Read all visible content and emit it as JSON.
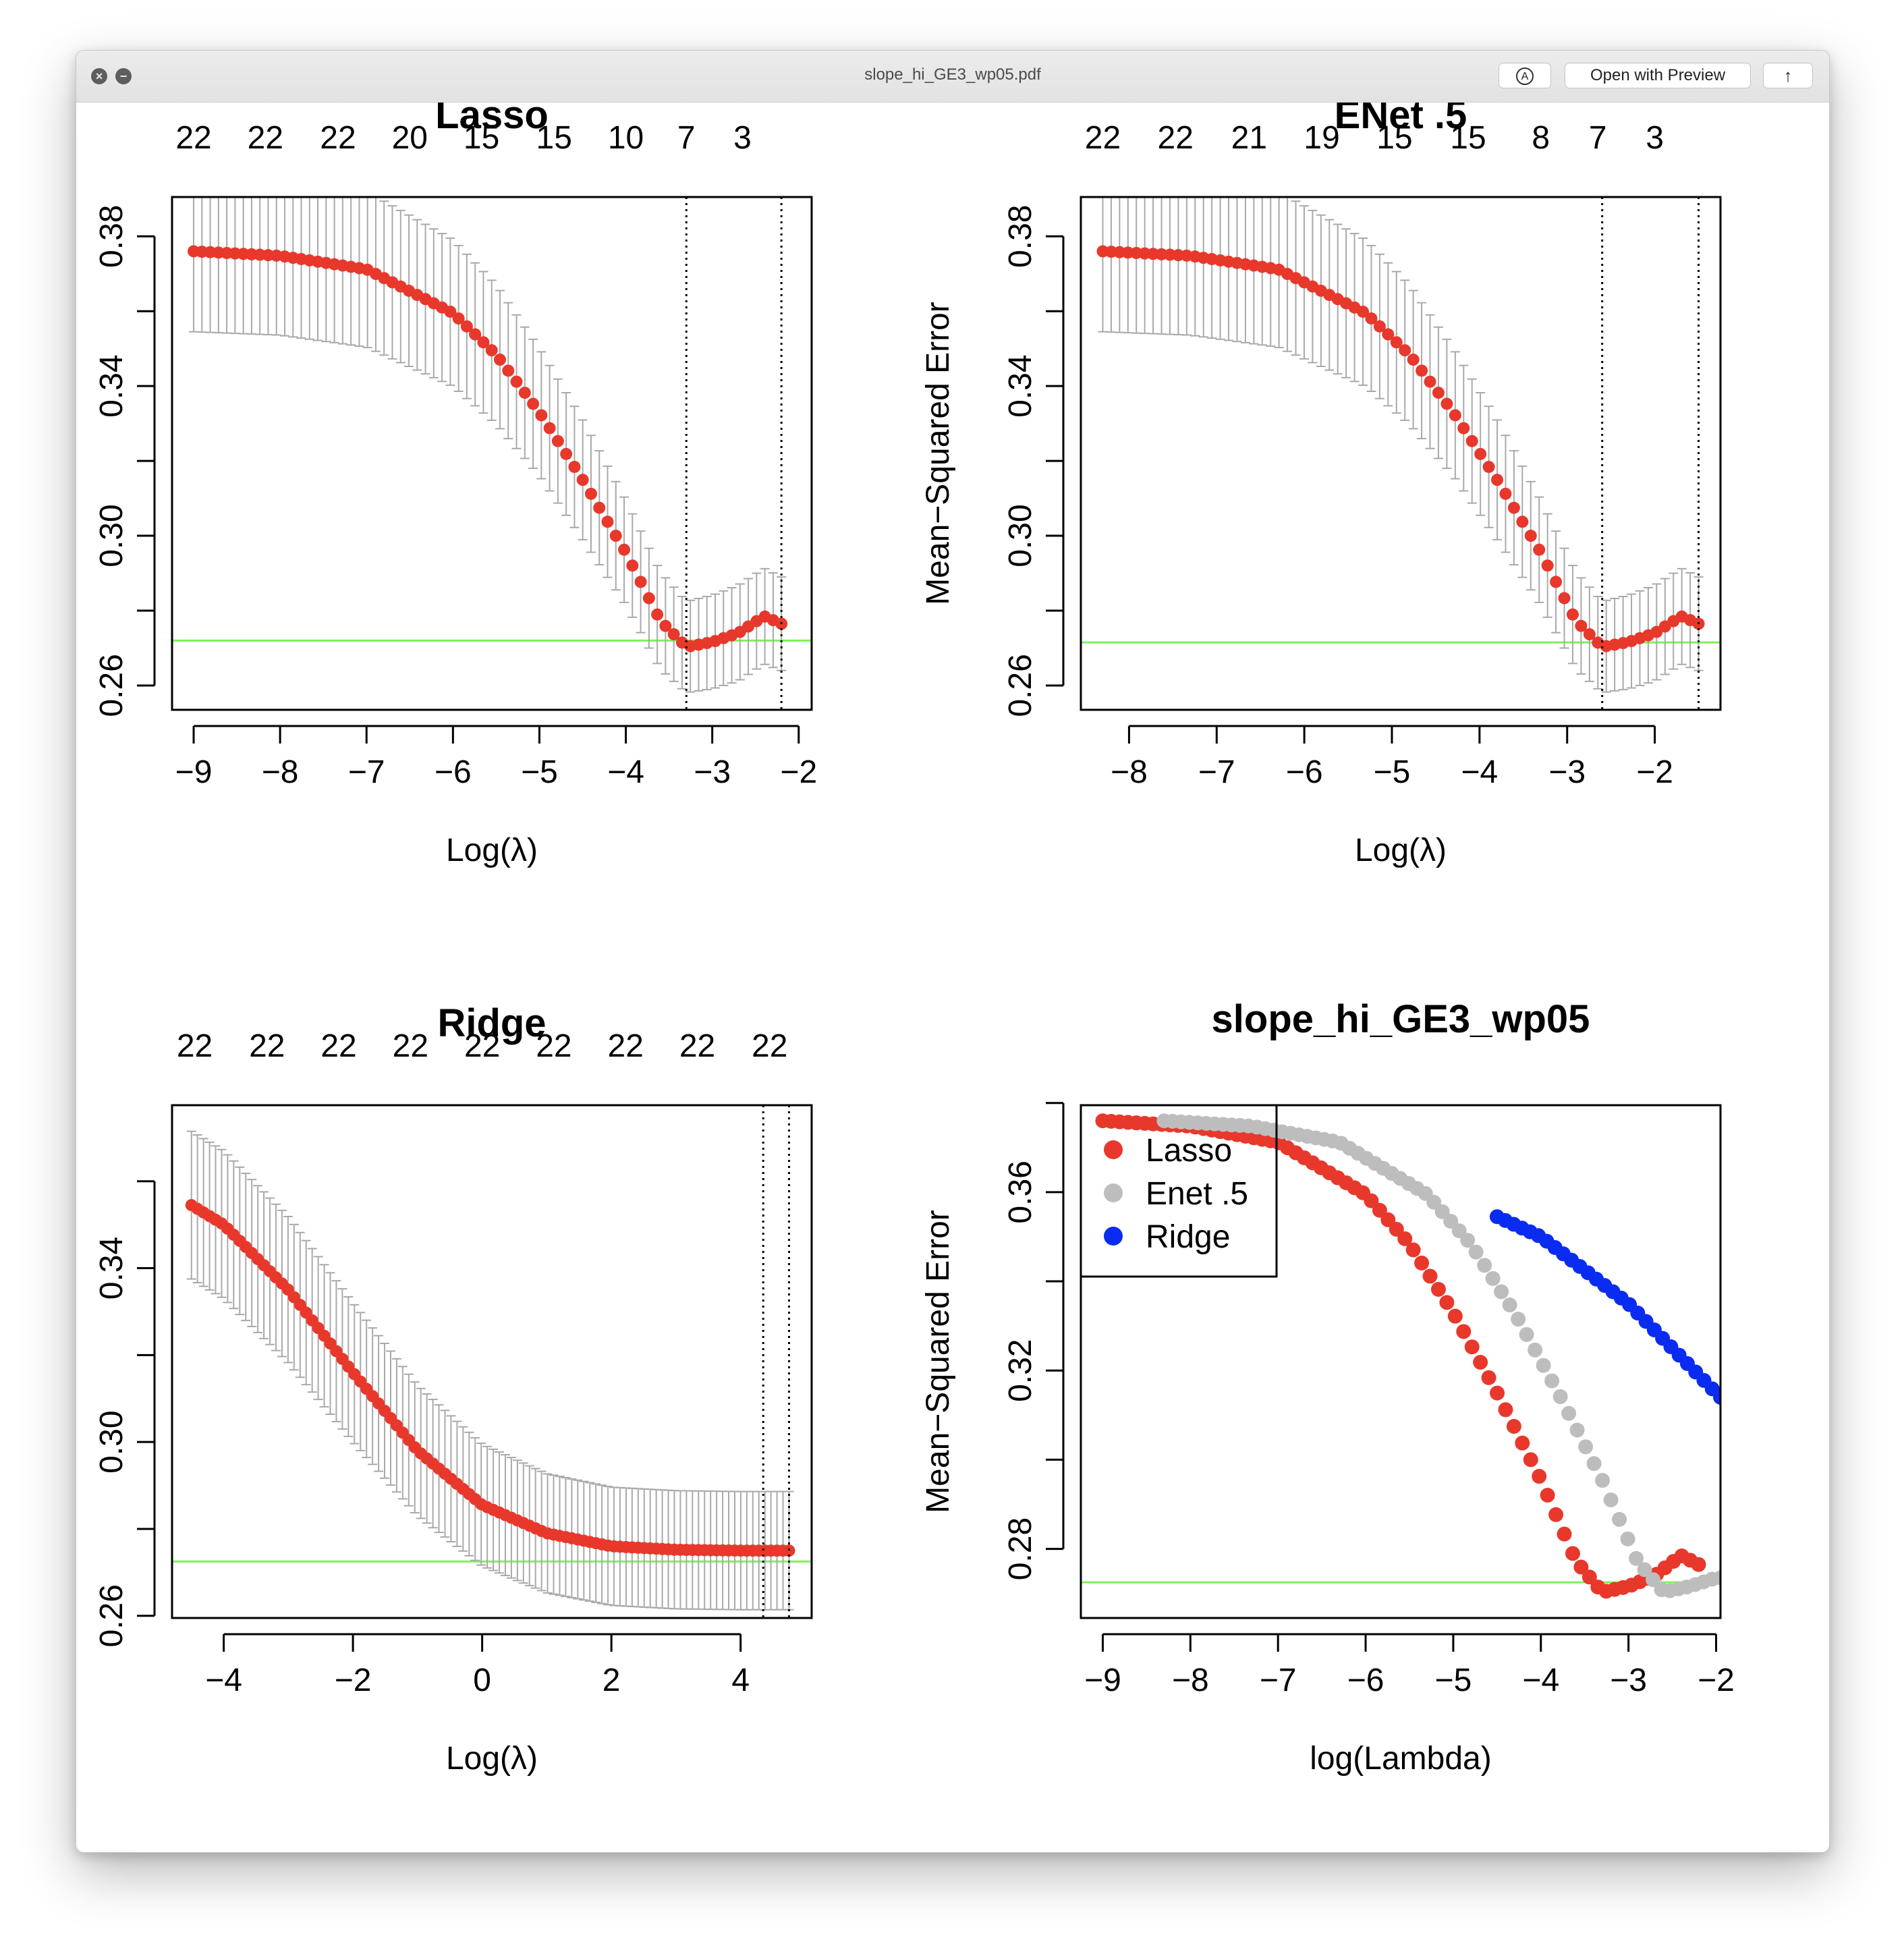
{
  "window": {
    "title": "slope_hi_GE3_wp05.pdf",
    "open_with_label": "Open with Preview",
    "close_glyph": "×",
    "minimize_glyph": "−",
    "markup_icon_glyph": "A",
    "share_icon_glyph": "↑",
    "icons": [
      "close-icon",
      "minimize-icon",
      "markup-icon",
      "share-icon"
    ]
  },
  "colors": {
    "series_red": "#e8382b",
    "enet_gray": "#bdbdbd",
    "ridge_blue": "#0a2cf0",
    "errorbar": "#a9a9a9",
    "hline": "#7cf25a"
  },
  "chart_data": [
    {
      "id": "lasso",
      "type": "scatter",
      "title": "Lasso",
      "xlabel": "Log(λ)",
      "ylabel": "Mean−Squared Error",
      "xlim": [
        -9.25,
        -1.85
      ],
      "ylim": [
        0.2535,
        0.3905
      ],
      "xticks": [
        -9,
        -8,
        -7,
        -6,
        -5,
        -4,
        -3,
        -2
      ],
      "yticks": [
        0.26,
        0.28,
        0.3,
        0.32,
        0.34,
        0.36,
        0.38
      ],
      "ytick_labels": [
        "0.26",
        "",
        "0.30",
        "",
        "0.34",
        "",
        "0.38"
      ],
      "top_axis": {
        "x": [
          -9.0,
          -8.17,
          -7.33,
          -6.5,
          -5.67,
          -4.83,
          -4.0,
          -3.3,
          -2.65
        ],
        "labels": [
          "22",
          "22",
          "22",
          "20",
          "15",
          "15",
          "10",
          "7",
          "3"
        ]
      },
      "vlines": [
        -3.3,
        -2.2
      ],
      "hline": 0.272,
      "series": [
        {
          "x_start": -9.0,
          "x_end": -2.2,
          "n": 72,
          "knots_x": [
            -9.0,
            -8.0,
            -7.0,
            -6.0,
            -5.5,
            -5.0,
            -4.5,
            -4.0,
            -3.6,
            -3.3,
            -3.0,
            -2.7,
            -2.4,
            -2.2
          ],
          "knots_y": [
            0.376,
            0.3748,
            0.3712,
            0.3595,
            0.3484,
            0.333,
            0.315,
            0.2955,
            0.2773,
            0.2703,
            0.2716,
            0.274,
            0.2785,
            0.2765
          ],
          "se": [
            0.0215,
            0.0212,
            0.0208,
            0.0196,
            0.0186,
            0.017,
            0.016,
            0.014,
            0.013,
            0.0122,
            0.0125,
            0.0128,
            0.0128,
            0.0125
          ]
        }
      ]
    },
    {
      "id": "enet",
      "type": "scatter",
      "title": "ENet .5",
      "xlabel": "Log(λ)",
      "ylabel": "Mean−Squared Error",
      "xlim": [
        -8.55,
        -1.25
      ],
      "ylim": [
        0.2535,
        0.3905
      ],
      "xticks": [
        -8,
        -7,
        -6,
        -5,
        -4,
        -3,
        -2
      ],
      "yticks": [
        0.26,
        0.28,
        0.3,
        0.32,
        0.34,
        0.36,
        0.38
      ],
      "ytick_labels": [
        "0.26",
        "",
        "0.30",
        "",
        "0.34",
        "",
        "0.38"
      ],
      "top_axis": {
        "x": [
          -8.3,
          -7.47,
          -6.63,
          -5.8,
          -4.97,
          -4.13,
          -3.3,
          -2.65,
          -2.0
        ],
        "labels": [
          "22",
          "22",
          "21",
          "19",
          "15",
          "15",
          "8",
          "7",
          "3"
        ]
      },
      "vlines": [
        -2.6,
        -1.5
      ],
      "hline": 0.2715,
      "series": [
        {
          "x_start": -8.3,
          "x_end": -1.5,
          "n": 72,
          "knots_x": [
            -8.3,
            -7.3,
            -6.3,
            -5.3,
            -4.8,
            -4.3,
            -3.8,
            -3.3,
            -2.9,
            -2.6,
            -2.3,
            -2.0,
            -1.7,
            -1.5
          ],
          "knots_y": [
            0.376,
            0.3748,
            0.3712,
            0.3595,
            0.3484,
            0.333,
            0.315,
            0.2955,
            0.2773,
            0.2703,
            0.2716,
            0.274,
            0.2785,
            0.2765
          ],
          "se": [
            0.0215,
            0.0212,
            0.0208,
            0.0196,
            0.0186,
            0.017,
            0.016,
            0.014,
            0.013,
            0.0122,
            0.0125,
            0.0128,
            0.0128,
            0.0125
          ]
        }
      ]
    },
    {
      "id": "ridge",
      "type": "scatter",
      "title": "Ridge",
      "xlabel": "Log(λ)",
      "ylabel": "Mean−Squared Error",
      "xlim": [
        -4.8,
        5.1
      ],
      "ylim": [
        0.2595,
        0.3775
      ],
      "xticks": [
        -4,
        -2,
        0,
        2,
        4
      ],
      "yticks": [
        0.26,
        0.28,
        0.3,
        0.32,
        0.34,
        0.36
      ],
      "ytick_labels": [
        "0.26",
        "",
        "0.30",
        "",
        "0.34",
        ""
      ],
      "top_axis": {
        "x": [
          -4.45,
          -3.33,
          -2.22,
          -1.11,
          0.0,
          1.11,
          2.22,
          3.33,
          4.45
        ],
        "labels": [
          "22",
          "22",
          "22",
          "22",
          "22",
          "22",
          "22",
          "22",
          "22"
        ]
      },
      "vlines": [
        4.35,
        4.75
      ],
      "hline": 0.2725,
      "series": [
        {
          "x_start": -4.5,
          "x_end": 4.75,
          "n": 100,
          "knots_x": [
            -4.5,
            -4.0,
            -3.0,
            -2.0,
            -1.0,
            0.0,
            1.0,
            2.0,
            3.0,
            4.0,
            4.75
          ],
          "knots_y": [
            0.3545,
            0.35,
            0.335,
            0.316,
            0.298,
            0.2855,
            0.279,
            0.276,
            0.2752,
            0.275,
            0.275
          ],
          "se": [
            0.017,
            0.017,
            0.0168,
            0.016,
            0.015,
            0.014,
            0.0137,
            0.0136,
            0.0136,
            0.0136,
            0.0136
          ]
        }
      ]
    },
    {
      "id": "combined",
      "type": "scatter",
      "title": "slope_hi_GE3_wp05",
      "xlabel": "log(Lambda)",
      "ylabel": "Mean−Squared Error",
      "xlim": [
        -9.25,
        -1.95
      ],
      "ylim": [
        0.2645,
        0.3795
      ],
      "xticks": [
        -9,
        -8,
        -7,
        -6,
        -5,
        -4,
        -3,
        -2
      ],
      "yticks": [
        0.28,
        0.3,
        0.32,
        0.34,
        0.36,
        0.38
      ],
      "ytick_labels": [
        "0.28",
        "",
        "0.32",
        "",
        "0.36",
        ""
      ],
      "hline": 0.2725,
      "legend": {
        "position": "top-left",
        "entries": [
          "Lasso",
          "Enet .5",
          "Ridge"
        ]
      },
      "series": [
        {
          "name": "Lasso",
          "x_start": -9.0,
          "x_end": -2.2,
          "n": 72,
          "knots_x": [
            -9.0,
            -8.0,
            -7.0,
            -6.0,
            -5.5,
            -5.0,
            -4.5,
            -4.0,
            -3.6,
            -3.3,
            -3.0,
            -2.7,
            -2.4,
            -2.2
          ],
          "knots_y": [
            0.376,
            0.3748,
            0.3712,
            0.3595,
            0.3484,
            0.333,
            0.315,
            0.2955,
            0.2773,
            0.2703,
            0.2716,
            0.274,
            0.2785,
            0.2765
          ]
        },
        {
          "name": "Enet .5",
          "x_start": -8.3,
          "x_end": -1.95,
          "n": 67,
          "knots_x": [
            -8.3,
            -7.3,
            -6.3,
            -5.3,
            -4.8,
            -4.3,
            -3.8,
            -3.3,
            -2.9,
            -2.6,
            -2.3,
            -2.0
          ],
          "knots_y": [
            0.376,
            0.3748,
            0.3712,
            0.3595,
            0.3484,
            0.333,
            0.315,
            0.2955,
            0.2773,
            0.2703,
            0.2716,
            0.2735
          ]
        },
        {
          "name": "Ridge",
          "x_start": -4.5,
          "x_end": -1.95,
          "n": 28,
          "knots_x": [
            -4.5,
            -4.0,
            -3.0,
            -1.95
          ],
          "knots_y": [
            0.3545,
            0.35,
            0.335,
            0.314
          ]
        }
      ]
    }
  ]
}
